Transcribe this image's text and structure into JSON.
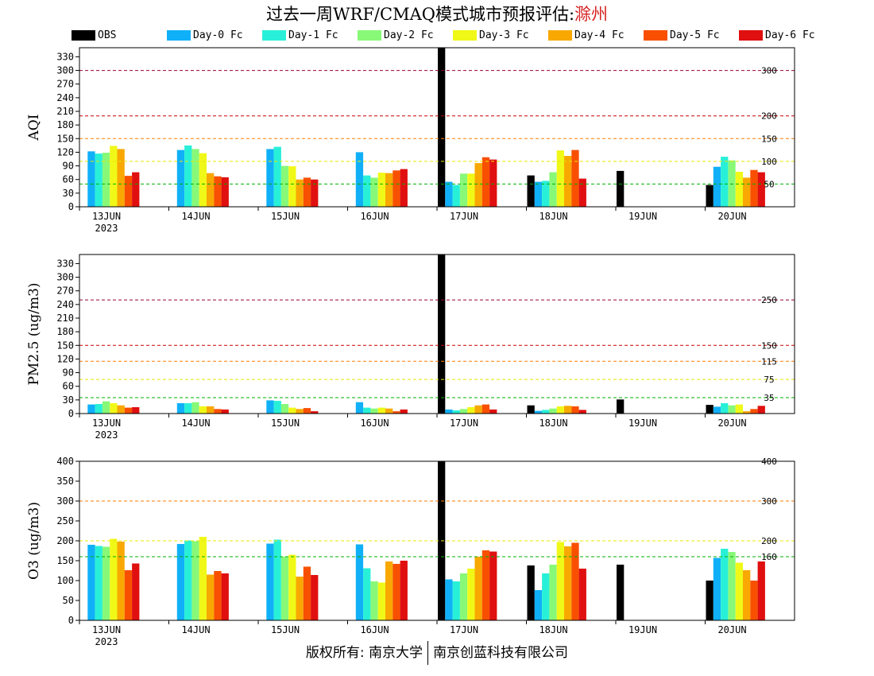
{
  "title": {
    "prefix": "过去一周WRF/CMAQ模式城市预报评估:",
    "city": "滁州",
    "city_color": "#d62020"
  },
  "footer": {
    "left": "版权所有: 南京大学",
    "right": "南京创蓝科技有限公司"
  },
  "legend": [
    {
      "label": "OBS",
      "color": "#000000"
    },
    {
      "label": "Day-0 Fc",
      "color": "#10b0f8"
    },
    {
      "label": "Day-1 Fc",
      "color": "#28f0d8"
    },
    {
      "label": "Day-2 Fc",
      "color": "#88f878"
    },
    {
      "label": "Day-3 Fc",
      "color": "#f0f818"
    },
    {
      "label": "Day-4 Fc",
      "color": "#f8a800"
    },
    {
      "label": "Day-5 Fc",
      "color": "#f85000"
    },
    {
      "label": "Day-6 Fc",
      "color": "#e01010"
    }
  ],
  "chart_data": [
    {
      "type": "bar",
      "ylabel": "AQI",
      "ylim": [
        0,
        350
      ],
      "yticks": [
        0,
        30,
        60,
        90,
        120,
        150,
        180,
        210,
        240,
        270,
        300,
        330
      ],
      "categories": [
        "13JUN",
        "14JUN",
        "15JUN",
        "16JUN",
        "17JUN",
        "18JUN",
        "19JUN",
        "20JUN"
      ],
      "year_label": "2023",
      "reference_lines": [
        {
          "value": 300,
          "label": "300",
          "color": "#990033"
        },
        {
          "value": 200,
          "label": "200",
          "color": "#cc0000"
        },
        {
          "value": 150,
          "label": "150",
          "color": "#ff7e00"
        },
        {
          "value": 100,
          "label": "100",
          "color": "#e8e800"
        },
        {
          "value": 50,
          "label": "50",
          "color": "#00b000"
        }
      ],
      "series": [
        {
          "name": "OBS",
          "values": [
            null,
            null,
            null,
            null,
            350,
            69,
            79,
            48
          ]
        },
        {
          "name": "Day-0 Fc",
          "values": [
            122,
            125,
            127,
            120,
            55,
            55,
            null,
            88
          ]
        },
        {
          "name": "Day-1 Fc",
          "values": [
            117,
            135,
            132,
            69,
            48,
            57,
            null,
            110
          ]
        },
        {
          "name": "Day-2 Fc",
          "values": [
            119,
            127,
            90,
            64,
            73,
            76,
            null,
            102
          ]
        },
        {
          "name": "Day-3 Fc",
          "values": [
            134,
            118,
            89,
            75,
            73,
            124,
            null,
            77
          ]
        },
        {
          "name": "Day-4 Fc",
          "values": [
            127,
            74,
            60,
            74,
            96,
            112,
            null,
            64
          ]
        },
        {
          "name": "Day-5 Fc",
          "values": [
            68,
            67,
            64,
            80,
            109,
            125,
            null,
            81
          ]
        },
        {
          "name": "Day-6 Fc",
          "values": [
            76,
            65,
            60,
            83,
            104,
            62,
            null,
            76
          ]
        }
      ]
    },
    {
      "type": "bar",
      "ylabel": "PM2.5 (ug/m3)",
      "ylim": [
        0,
        350
      ],
      "yticks": [
        0,
        30,
        60,
        90,
        120,
        150,
        180,
        210,
        240,
        270,
        300,
        330
      ],
      "categories": [
        "13JUN",
        "14JUN",
        "15JUN",
        "16JUN",
        "17JUN",
        "18JUN",
        "19JUN",
        "20JUN"
      ],
      "year_label": "2023",
      "reference_lines": [
        {
          "value": 250,
          "label": "250",
          "color": "#990033"
        },
        {
          "value": 150,
          "label": "150",
          "color": "#cc0000"
        },
        {
          "value": 115,
          "label": "115",
          "color": "#ff7e00"
        },
        {
          "value": 75,
          "label": "75",
          "color": "#e8e800"
        },
        {
          "value": 35,
          "label": "35",
          "color": "#00b000"
        }
      ],
      "series": [
        {
          "name": "OBS",
          "values": [
            null,
            null,
            null,
            null,
            350,
            18,
            31,
            19
          ]
        },
        {
          "name": "Day-0 Fc",
          "values": [
            20,
            23,
            29,
            25,
            9,
            6,
            null,
            15
          ]
        },
        {
          "name": "Day-1 Fc",
          "values": [
            21,
            23,
            28,
            13,
            7,
            8,
            null,
            23
          ]
        },
        {
          "name": "Day-2 Fc",
          "values": [
            27,
            25,
            21,
            11,
            10,
            11,
            null,
            18
          ]
        },
        {
          "name": "Day-3 Fc",
          "values": [
            23,
            16,
            13,
            13,
            14,
            16,
            null,
            20
          ]
        },
        {
          "name": "Day-4 Fc",
          "values": [
            18,
            16,
            10,
            11,
            18,
            17,
            null,
            5
          ]
        },
        {
          "name": "Day-5 Fc",
          "values": [
            13,
            10,
            12,
            5,
            20,
            16,
            null,
            10
          ]
        },
        {
          "name": "Day-6 Fc",
          "values": [
            14,
            9,
            5,
            9,
            9,
            8,
            null,
            17
          ]
        }
      ]
    },
    {
      "type": "bar",
      "ylabel": "O3 (ug/m3)",
      "ylim": [
        0,
        400
      ],
      "yticks": [
        0,
        50,
        100,
        150,
        200,
        250,
        300,
        350,
        400
      ],
      "categories": [
        "13JUN",
        "14JUN",
        "15JUN",
        "16JUN",
        "17JUN",
        "18JUN",
        "19JUN",
        "20JUN"
      ],
      "year_label": "2023",
      "reference_lines": [
        {
          "value": 400,
          "label": "400",
          "color": "#cc0000"
        },
        {
          "value": 300,
          "label": "300",
          "color": "#ff7e00"
        },
        {
          "value": 200,
          "label": "200",
          "color": "#e8e800"
        },
        {
          "value": 160,
          "label": "160",
          "color": "#00b000"
        }
      ],
      "series": [
        {
          "name": "OBS",
          "values": [
            null,
            null,
            null,
            null,
            400,
            138,
            140,
            100
          ]
        },
        {
          "name": "Day-0 Fc",
          "values": [
            190,
            192,
            193,
            191,
            103,
            76,
            null,
            157
          ]
        },
        {
          "name": "Day-1 Fc",
          "values": [
            187,
            201,
            203,
            131,
            98,
            118,
            null,
            180
          ]
        },
        {
          "name": "Day-2 Fc",
          "values": [
            185,
            199,
            160,
            98,
            118,
            140,
            null,
            172
          ]
        },
        {
          "name": "Day-3 Fc",
          "values": [
            205,
            210,
            165,
            95,
            130,
            197,
            null,
            145
          ]
        },
        {
          "name": "Day-4 Fc",
          "values": [
            198,
            115,
            110,
            148,
            160,
            186,
            null,
            126
          ]
        },
        {
          "name": "Day-5 Fc",
          "values": [
            126,
            124,
            135,
            142,
            176,
            195,
            null,
            100
          ]
        },
        {
          "name": "Day-6 Fc",
          "values": [
            143,
            118,
            114,
            150,
            173,
            130,
            null,
            148
          ]
        }
      ]
    }
  ]
}
